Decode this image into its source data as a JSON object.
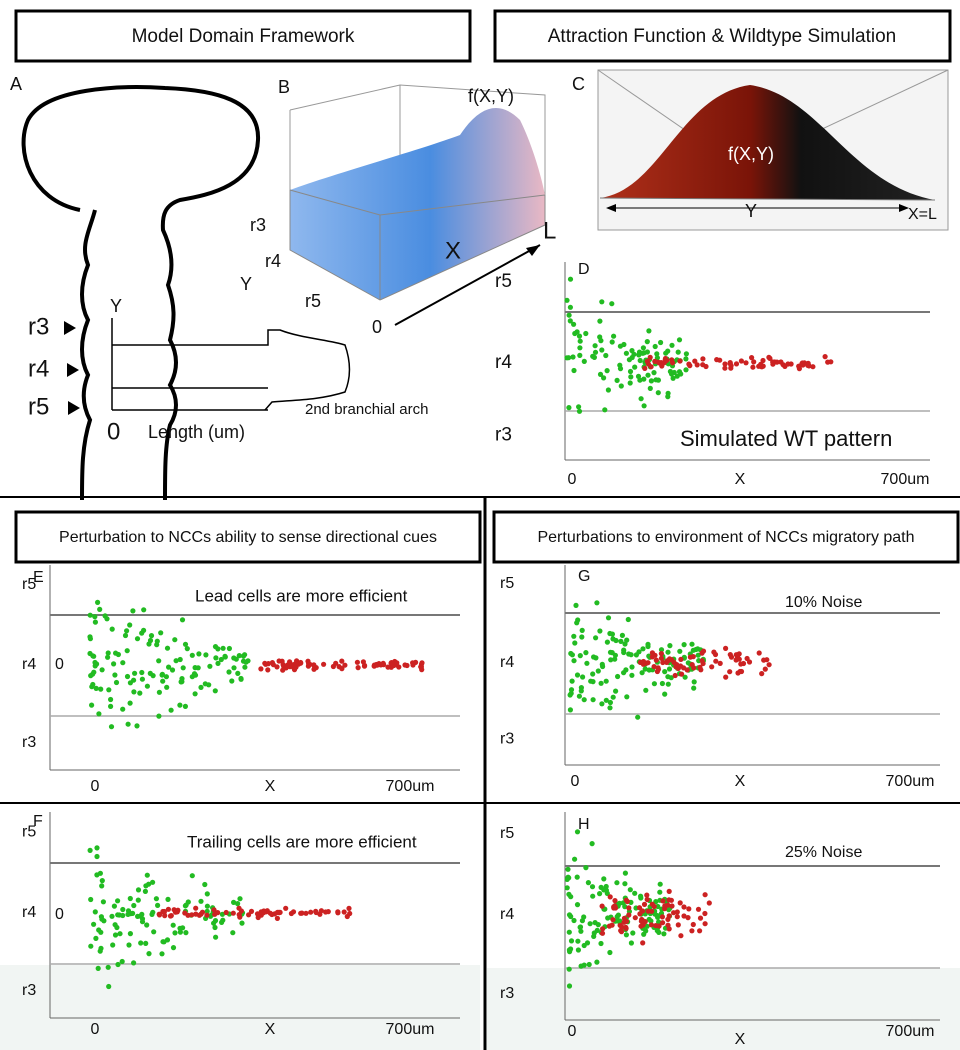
{
  "headers": [
    "Model Domain Framework",
    "Attraction Function & Wildtype Simulation",
    "Perturbation to NCCs ability to sense directional cues",
    "Perturbations to environment of NCCs migratory path"
  ],
  "panel_a": {
    "label": "A",
    "rhombomeres": [
      "r3",
      "r4",
      "r5"
    ],
    "y_axis": "Y",
    "origin": "0",
    "x_axis": "Length (um)",
    "arch": "2nd branchial arch"
  },
  "panel_b": {
    "label": "B",
    "function": "f(X,Y)",
    "rhombomeres": [
      "r3",
      "r4",
      "r5"
    ],
    "y_axis": "Y",
    "x_axis": "X",
    "end": "L",
    "origin": "0"
  },
  "panel_c": {
    "label": "C",
    "function": "f(X,Y)",
    "y_axis": "Y",
    "end": "X=L"
  },
  "plots": [
    {
      "label": "D",
      "rhombomeres": [
        "r5",
        "r4",
        "r3"
      ],
      "annotation": "Simulated WT pattern",
      "x_labels": [
        "0",
        "X",
        "700um"
      ]
    },
    {
      "label": "E",
      "rhombomeres": [
        "r5",
        "r4",
        "r3"
      ],
      "origin": "0",
      "annotation": "Lead cells are more efficient",
      "x_labels": [
        "0",
        "X",
        "700um"
      ]
    },
    {
      "label": "F",
      "rhombomeres": [
        "r5",
        "r4",
        "r3"
      ],
      "origin": "0",
      "annotation": "Trailing cells are more efficient",
      "x_labels": [
        "0",
        "X",
        "700um"
      ]
    },
    {
      "label": "G",
      "rhombomeres": [
        "r5",
        "r4",
        "r3"
      ],
      "annotation": "10% Noise",
      "x_labels": [
        "0",
        "X",
        "700um"
      ]
    },
    {
      "label": "H",
      "rhombomeres": [
        "r5",
        "r4",
        "r3"
      ],
      "annotation": "25% Noise",
      "x_labels": [
        "0",
        "X",
        "700um"
      ]
    }
  ]
}
